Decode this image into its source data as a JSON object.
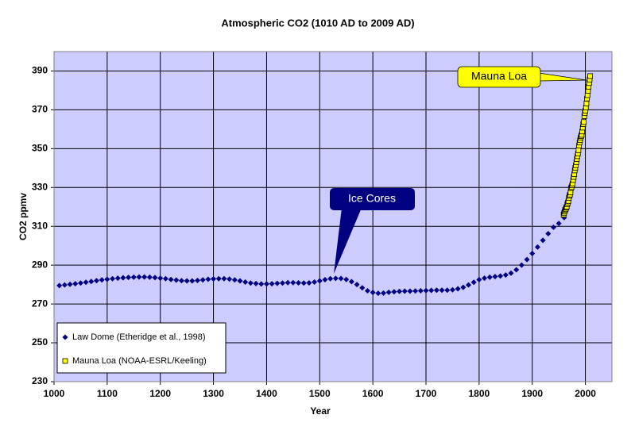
{
  "chart_data": {
    "type": "scatter",
    "title": "Atmospheric CO2 (1010 AD to 2009 AD)",
    "x_label": "Year",
    "y_label": "CO2 ppmv",
    "xlim": [
      1000,
      2050
    ],
    "ylim": [
      230,
      400
    ],
    "xticks": [
      1000,
      1100,
      1200,
      1300,
      1400,
      1500,
      1600,
      1700,
      1800,
      1900,
      2000
    ],
    "yticks": [
      230,
      250,
      270,
      290,
      310,
      330,
      350,
      370,
      390
    ],
    "grid": true,
    "legend": "lower left",
    "background": "#ccccff",
    "series": [
      {
        "name": "Law Dome (Etheridge et al., 1998)",
        "color": "#000080",
        "marker": "diamond",
        "x": [
          1010,
          1020,
          1030,
          1040,
          1050,
          1060,
          1070,
          1080,
          1090,
          1100,
          1110,
          1120,
          1130,
          1140,
          1150,
          1160,
          1170,
          1180,
          1190,
          1200,
          1210,
          1220,
          1230,
          1240,
          1250,
          1260,
          1270,
          1280,
          1290,
          1300,
          1310,
          1320,
          1330,
          1340,
          1350,
          1360,
          1370,
          1380,
          1390,
          1400,
          1410,
          1420,
          1430,
          1440,
          1450,
          1460,
          1470,
          1480,
          1490,
          1500,
          1510,
          1520,
          1530,
          1540,
          1550,
          1560,
          1570,
          1580,
          1590,
          1600,
          1610,
          1620,
          1630,
          1640,
          1650,
          1660,
          1670,
          1680,
          1690,
          1700,
          1710,
          1720,
          1730,
          1740,
          1750,
          1760,
          1770,
          1780,
          1790,
          1800,
          1810,
          1820,
          1830,
          1840,
          1850,
          1860,
          1870,
          1880,
          1890,
          1900,
          1910,
          1920,
          1930,
          1940,
          1950,
          1960
        ],
        "values": [
          279.5,
          279.8,
          280.1,
          280.4,
          280.8,
          281.2,
          281.6,
          282.0,
          282.4,
          282.7,
          283.0,
          283.3,
          283.5,
          283.7,
          283.8,
          283.9,
          283.9,
          283.8,
          283.6,
          283.3,
          283.0,
          282.6,
          282.3,
          282.0,
          281.9,
          281.9,
          282.1,
          282.4,
          282.7,
          282.9,
          283.0,
          283.0,
          282.8,
          282.4,
          281.9,
          281.3,
          280.8,
          280.5,
          280.3,
          280.3,
          280.4,
          280.6,
          280.8,
          281.0,
          281.0,
          280.9,
          280.8,
          280.9,
          281.3,
          281.9,
          282.5,
          283.0,
          283.2,
          283.1,
          282.6,
          281.5,
          280.0,
          278.3,
          276.8,
          275.9,
          275.5,
          275.6,
          276.0,
          276.3,
          276.5,
          276.6,
          276.6,
          276.7,
          276.8,
          276.9,
          277.0,
          277.1,
          277.1,
          277.1,
          277.3,
          277.8,
          278.6,
          279.8,
          281.2,
          282.5,
          283.3,
          283.8,
          284.1,
          284.4,
          284.9,
          285.9,
          287.6,
          290.0,
          292.9,
          296.0,
          299.3,
          302.8,
          306.2,
          309.5,
          311.5,
          314.5
        ]
      },
      {
        "name": "Mauna Loa (NOAA-ESRL/Keeling)",
        "color": "#ffff00",
        "marker": "square",
        "x": [
          1959,
          1960,
          1961,
          1962,
          1963,
          1964,
          1965,
          1966,
          1967,
          1968,
          1969,
          1970,
          1971,
          1972,
          1973,
          1974,
          1975,
          1976,
          1977,
          1978,
          1979,
          1980,
          1981,
          1982,
          1983,
          1984,
          1985,
          1986,
          1987,
          1988,
          1989,
          1990,
          1991,
          1992,
          1993,
          1994,
          1995,
          1996,
          1997,
          1998,
          1999,
          2000,
          2001,
          2002,
          2003,
          2004,
          2005,
          2006,
          2007,
          2008,
          2009
        ],
        "values": [
          315.98,
          316.91,
          317.64,
          318.45,
          318.99,
          319.62,
          320.04,
          321.38,
          322.16,
          323.04,
          324.62,
          325.68,
          326.32,
          327.45,
          329.68,
          330.18,
          331.11,
          332.04,
          333.83,
          335.4,
          336.84,
          338.75,
          340.11,
          341.45,
          343.05,
          344.65,
          346.12,
          347.42,
          349.19,
          351.57,
          353.12,
          354.39,
          355.61,
          356.45,
          357.1,
          358.83,
          360.82,
          362.61,
          363.73,
          366.7,
          368.38,
          369.55,
          371.14,
          373.28,
          375.8,
          377.52,
          379.8,
          381.9,
          383.76,
          385.59,
          387.37
        ]
      }
    ],
    "annotations": [
      {
        "text": "Ice Cores"
      },
      {
        "text": "Mauna Loa"
      }
    ]
  }
}
